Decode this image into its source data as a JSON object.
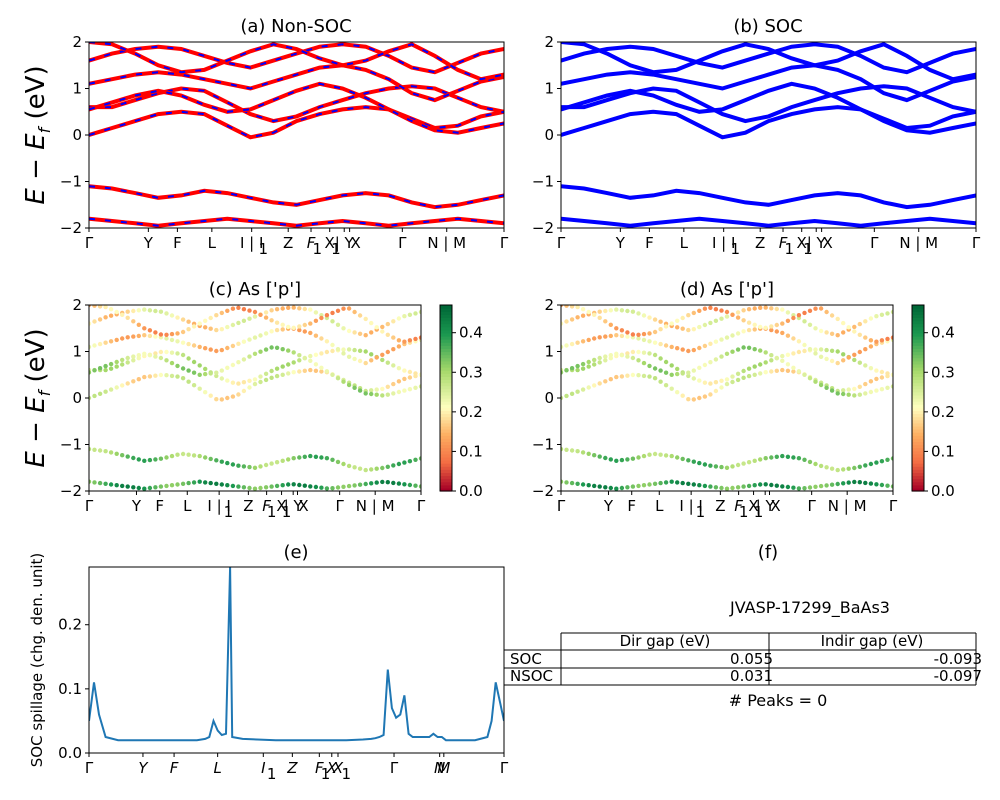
{
  "chart_data": [
    {
      "id": "a",
      "type": "line",
      "title": "(a) Non-SOC",
      "ylabel_parts": [
        "E",
        " − ",
        "E",
        "f",
        " (eV)"
      ],
      "ylim": [
        -2,
        2
      ],
      "yticks": [
        "−2",
        "−1",
        "0",
        "1",
        "2"
      ],
      "xtick_labels": [
        "Γ",
        "Y",
        "F",
        "L",
        "I | I",
        "1",
        "Z",
        "F",
        "1",
        "X",
        "1",
        "| Y",
        "X",
        "Γ",
        "N | M",
        "Γ"
      ],
      "series": [
        {
          "color": "#ff0000",
          "style": "solid"
        },
        {
          "color": "#0000ff",
          "style": "dashed"
        }
      ],
      "bands": [
        [
          0.6,
          0.6,
          0.75,
          0.9,
          1.0,
          0.95,
          0.7,
          0.45,
          0.3,
          0.4,
          0.6,
          0.75,
          0.9,
          1.0,
          1.05,
          1.0,
          0.8,
          0.6,
          0.5
        ],
        [
          0.0,
          0.15,
          0.3,
          0.45,
          0.5,
          0.45,
          0.2,
          -0.05,
          0.05,
          0.3,
          0.45,
          0.55,
          0.6,
          0.55,
          0.35,
          0.15,
          0.2,
          0.4,
          0.5
        ],
        [
          1.1,
          1.2,
          1.3,
          1.35,
          1.3,
          1.2,
          1.1,
          1.0,
          1.15,
          1.3,
          1.45,
          1.5,
          1.4,
          1.2,
          0.9,
          0.75,
          0.95,
          1.15,
          1.25
        ],
        [
          1.6,
          1.75,
          1.85,
          1.9,
          1.85,
          1.7,
          1.55,
          1.45,
          1.6,
          1.75,
          1.9,
          1.95,
          1.9,
          1.7,
          1.45,
          1.35,
          1.55,
          1.75,
          1.85
        ],
        [
          -1.1,
          -1.15,
          -1.25,
          -1.35,
          -1.3,
          -1.2,
          -1.25,
          -1.35,
          -1.45,
          -1.5,
          -1.4,
          -1.3,
          -1.25,
          -1.3,
          -1.45,
          -1.55,
          -1.5,
          -1.4,
          -1.3
        ],
        [
          -1.8,
          -1.85,
          -1.9,
          -1.95,
          -1.9,
          -1.85,
          -1.8,
          -1.85,
          -1.9,
          -1.95,
          -1.9,
          -1.85,
          -1.9,
          -1.95,
          -1.9,
          -1.85,
          -1.8,
          -1.85,
          -1.9
        ],
        [
          2.0,
          1.95,
          1.75,
          1.5,
          1.35,
          1.4,
          1.6,
          1.8,
          1.95,
          1.85,
          1.65,
          1.5,
          1.6,
          1.8,
          1.95,
          1.7,
          1.4,
          1.2,
          1.3
        ],
        [
          0.55,
          0.7,
          0.85,
          0.95,
          0.85,
          0.65,
          0.5,
          0.55,
          0.75,
          0.95,
          1.1,
          1.0,
          0.8,
          0.55,
          0.3,
          0.1,
          0.05,
          0.15,
          0.25
        ]
      ]
    },
    {
      "id": "b",
      "type": "line",
      "title": "(b) SOC",
      "ylim": [
        -2,
        2
      ],
      "yticks": [
        "−2",
        "−1",
        "0",
        "1",
        "2"
      ],
      "xtick_labels": [
        "Γ",
        "Y",
        "F",
        "L",
        "I | I",
        "1",
        "Z",
        "F",
        "1",
        "X",
        "1",
        "| Y",
        "X",
        "Γ",
        "N | M",
        "Γ"
      ],
      "series": [
        {
          "color": "#0000ff",
          "style": "solid"
        }
      ]
    },
    {
      "id": "c",
      "type": "scatter",
      "title": "(c)  As ['p']",
      "ylabel_parts": [
        "E",
        " − ",
        "E",
        "f",
        " (eV)"
      ],
      "ylim": [
        -2,
        2
      ],
      "yticks": [
        "−2",
        "−1",
        "0",
        "1",
        "2"
      ],
      "xtick_labels": [
        "Γ",
        "Y",
        "F",
        "L",
        "I | I",
        "1",
        "Z",
        "F",
        "1",
        "X",
        "1",
        "| Y",
        "X",
        "Γ",
        "N | M",
        "Γ"
      ],
      "colorbar": {
        "ticks": [
          "0.0",
          "0.1",
          "0.2",
          "0.3",
          "0.4"
        ],
        "range": [
          0,
          0.47
        ],
        "colormap": "RdYlGn"
      }
    },
    {
      "id": "d",
      "type": "scatter",
      "title": "(d) As ['p']",
      "ylim": [
        -2,
        2
      ],
      "yticks": [
        "−2",
        "−1",
        "0",
        "1",
        "2"
      ],
      "xtick_labels": [
        "Γ",
        "Y",
        "F",
        "L",
        "I | I",
        "1",
        "Z",
        "F",
        "1",
        "X",
        "1",
        "| Y",
        "X",
        "Γ",
        "N | M",
        "Γ"
      ],
      "colorbar": {
        "ticks": [
          "0.0",
          "0.1",
          "0.2",
          "0.3",
          "0.4"
        ],
        "range": [
          0,
          0.47
        ],
        "colormap": "RdYlGn"
      }
    },
    {
      "id": "e",
      "type": "line",
      "title": "(e)",
      "ylabel": "SOC spillage (chg. den. unit)",
      "ylim": [
        0,
        0.29
      ],
      "yticks": [
        "0.0",
        "0.1",
        "0.2"
      ],
      "ytick_values": [
        0.0,
        0.1,
        0.2
      ],
      "xtick_labels": [
        "Γ",
        "Y",
        "F",
        "L",
        "I",
        "1",
        "Z",
        "F",
        "1",
        "X",
        "X",
        "1",
        "Γ",
        "N",
        "M",
        "Γ"
      ],
      "x": [
        0,
        0.012,
        0.024,
        0.04,
        0.07,
        0.12,
        0.2,
        0.26,
        0.28,
        0.29,
        0.3,
        0.31,
        0.32,
        0.33,
        0.34,
        0.345,
        0.37,
        0.45,
        0.52,
        0.58,
        0.6,
        0.62,
        0.66,
        0.68,
        0.69,
        0.7,
        0.71,
        0.72,
        0.73,
        0.74,
        0.75,
        0.76,
        0.77,
        0.78,
        0.79,
        0.8,
        0.82,
        0.83,
        0.84,
        0.85,
        0.86,
        0.87,
        0.89,
        0.93,
        0.96,
        0.97,
        0.98,
        0.99,
        1.0
      ],
      "y": [
        0.05,
        0.11,
        0.06,
        0.025,
        0.02,
        0.02,
        0.02,
        0.02,
        0.022,
        0.025,
        0.05,
        0.035,
        0.028,
        0.03,
        0.29,
        0.025,
        0.022,
        0.02,
        0.02,
        0.02,
        0.02,
        0.02,
        0.021,
        0.022,
        0.023,
        0.025,
        0.028,
        0.13,
        0.07,
        0.055,
        0.06,
        0.09,
        0.03,
        0.025,
        0.025,
        0.025,
        0.025,
        0.03,
        0.025,
        0.025,
        0.02,
        0.02,
        0.02,
        0.02,
        0.025,
        0.05,
        0.11,
        0.08,
        0.05
      ]
    }
  ],
  "panel_f": {
    "title": "(f)",
    "material": "JVASP-17299_BaAs3",
    "table": {
      "headers": [
        "",
        "Dir gap (eV)",
        "Indir gap (eV)"
      ],
      "rows": [
        {
          "label": "SOC",
          "dir": "0.055",
          "indir": "-0.093"
        },
        {
          "label": "NSOC",
          "dir": "0.031",
          "indir": "-0.097"
        }
      ]
    },
    "peaks": "# Peaks = 0"
  },
  "colors": {
    "nonsoc_red": "#ff0000",
    "soc_blue": "#0000ff",
    "spillage_line": "#1f77b4"
  }
}
